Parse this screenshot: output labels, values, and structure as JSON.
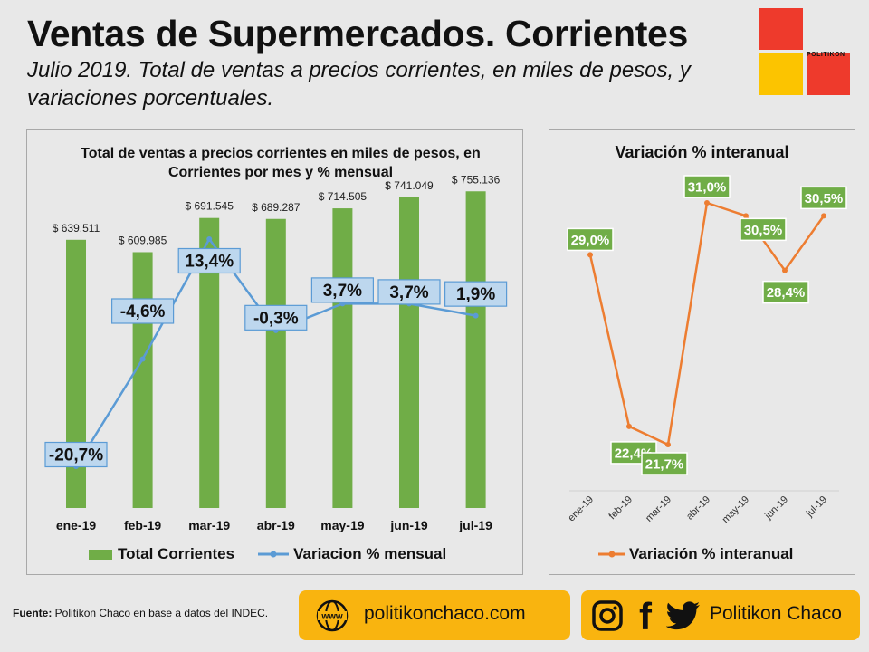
{
  "header": {
    "title": "Ventas de Supermercados. Corrientes",
    "subtitle": "Julio 2019. Total de ventas a precios corrientes, en miles de pesos, y variaciones porcentuales."
  },
  "logo": {
    "text": "POLITIKON"
  },
  "colors": {
    "bar": "#70ad47",
    "line_blue": "#5b9bd5",
    "line_orange": "#ed7d31",
    "label_blue_bg": "#bdd7ee",
    "label_green_bg": "#70ad47",
    "gold": "#f9b40f",
    "red": "#ee3a2c",
    "yellow": "#fcc400"
  },
  "chart_data": [
    {
      "type": "bar",
      "title": "Total de ventas a precios corrientes en miles de pesos, en Corrientes por mes y % mensual",
      "categories": [
        "ene-19",
        "feb-19",
        "mar-19",
        "abr-19",
        "may-19",
        "jun-19",
        "jul-19"
      ],
      "series": [
        {
          "name": "Total Corrientes",
          "type": "bar",
          "values": [
            639511,
            609985,
            691545,
            689287,
            714505,
            741049,
            755136
          ],
          "labels": [
            "$ 639.511",
            "$ 609.985",
            "$ 691.545",
            "$ 689.287",
            "$ 714.505",
            "$ 741.049",
            "$ 755.136"
          ]
        },
        {
          "name": "Variacion % mensual",
          "type": "line",
          "values": [
            -20.7,
            -4.6,
            13.4,
            -0.3,
            3.7,
            3.7,
            1.9
          ],
          "labels": [
            "-20,7%",
            "-4,6%",
            "13,4%",
            "-0,3%",
            "3,7%",
            "3,7%",
            "1,9%"
          ]
        }
      ],
      "legend_position": "bottom"
    },
    {
      "type": "line",
      "title": "Variación % interanual",
      "categories": [
        "ene-19",
        "feb-19",
        "mar-19",
        "abr-19",
        "may-19",
        "jun-19",
        "jul-19"
      ],
      "series": [
        {
          "name": "Variación % interanual",
          "values": [
            29.0,
            22.4,
            21.7,
            31.0,
            30.5,
            28.4,
            30.5
          ],
          "labels": [
            "29,0%",
            "22,4%",
            "21,7%",
            "31,0%",
            "30,5%",
            "28,4%",
            "30,5%"
          ]
        }
      ],
      "legend_position": "bottom"
    }
  ],
  "footer": {
    "source_label": "Fuente:",
    "source_text": " Politikon Chaco en base a datos del INDEC.",
    "website_icon": "www",
    "website": "politikonchaco.com",
    "social_name": "Politikon Chaco",
    "social_icons": [
      "instagram-icon",
      "facebook-icon",
      "twitter-icon"
    ],
    "facebook_glyph": "f"
  }
}
